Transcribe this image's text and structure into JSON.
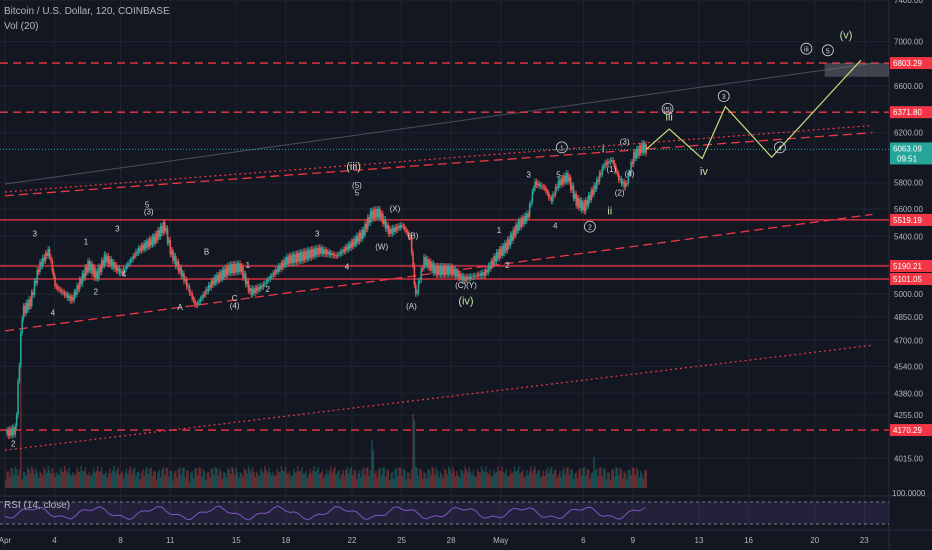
{
  "header": {
    "symbol_line": "Bitcoin / U.S. Dollar, 120, COINBASE",
    "vol_label": "Vol (20)",
    "rsi_label": "RSI (14, close)"
  },
  "chart_data": {
    "type": "candlestick",
    "instrument": "Bitcoin / U.S. Dollar",
    "interval": "120",
    "exchange": "COINBASE",
    "ylim": [
      3850,
      7400
    ],
    "y_scale": "log",
    "y_ticks": [
      7400,
      7000,
      6600,
      6200,
      5800,
      5600,
      5400,
      5200,
      5000,
      4850,
      4700,
      4540,
      4380,
      4255,
      4015
    ],
    "x_ticks": [
      {
        "label": "Apr",
        "day": 1
      },
      {
        "label": "4",
        "day": 4
      },
      {
        "label": "8",
        "day": 8
      },
      {
        "label": "11",
        "day": 11
      },
      {
        "label": "15",
        "day": 15
      },
      {
        "label": "18",
        "day": 18
      },
      {
        "label": "22",
        "day": 22
      },
      {
        "label": "25",
        "day": 25
      },
      {
        "label": "28",
        "day": 28
      },
      {
        "label": "May",
        "day": 31
      },
      {
        "label": "6",
        "day": 36
      },
      {
        "label": "9",
        "day": 39
      },
      {
        "label": "13",
        "day": 43
      },
      {
        "label": "16",
        "day": 46
      },
      {
        "label": "20",
        "day": 50
      },
      {
        "label": "23",
        "day": 53
      }
    ],
    "price_path": [
      [
        1,
        4150
      ],
      [
        1.6,
        4170
      ],
      [
        2,
        4880
      ],
      [
        2.5,
        4950
      ],
      [
        3,
        5180
      ],
      [
        3.6,
        5300
      ],
      [
        4,
        5050
      ],
      [
        5,
        4960
      ],
      [
        6,
        5200
      ],
      [
        6.5,
        5120
      ],
      [
        7,
        5250
      ],
      [
        8,
        5140
      ],
      [
        9,
        5300
      ],
      [
        10,
        5380
      ],
      [
        10.6,
        5480
      ],
      [
        11,
        5280
      ],
      [
        11.8,
        5100
      ],
      [
        12.5,
        4920
      ],
      [
        13.5,
        5080
      ],
      [
        14.5,
        5170
      ],
      [
        15.2,
        5180
      ],
      [
        15.8,
        5010
      ],
      [
        16.5,
        5050
      ],
      [
        17.3,
        5150
      ],
      [
        18,
        5230
      ],
      [
        19,
        5260
      ],
      [
        20,
        5300
      ],
      [
        21,
        5260
      ],
      [
        22,
        5350
      ],
      [
        22.6,
        5420
      ],
      [
        23.1,
        5560
      ],
      [
        23.6,
        5570
      ],
      [
        24.2,
        5430
      ],
      [
        25,
        5480
      ],
      [
        25.5,
        5380
      ],
      [
        25.8,
        4980
      ],
      [
        26.3,
        5230
      ],
      [
        27,
        5160
      ],
      [
        28,
        5160
      ],
      [
        28.7,
        5100
      ],
      [
        29.3,
        5120
      ],
      [
        30,
        5140
      ],
      [
        30.7,
        5260
      ],
      [
        31.3,
        5330
      ],
      [
        32,
        5480
      ],
      [
        32.6,
        5550
      ],
      [
        33,
        5800
      ],
      [
        33.6,
        5760
      ],
      [
        34,
        5660
      ],
      [
        34.4,
        5790
      ],
      [
        35,
        5850
      ],
      [
        35.5,
        5660
      ],
      [
        36,
        5610
      ],
      [
        36.7,
        5780
      ],
      [
        37.2,
        5940
      ],
      [
        37.7,
        5980
      ],
      [
        38.1,
        5830
      ],
      [
        38.5,
        5770
      ],
      [
        39,
        6010
      ],
      [
        39.5,
        6080
      ],
      [
        39.8,
        6063.09
      ]
    ],
    "volume_spikes": [
      [
        1.9,
        280
      ],
      [
        25.7,
        110
      ],
      [
        23.2,
        60
      ],
      [
        36.6,
        45
      ]
    ],
    "current_price": "6063.09",
    "countdown": "09:51",
    "current_price_color": "#26a69a",
    "price_labels": [
      {
        "value": "6803.29",
        "y": 6803.29
      },
      {
        "value": "6371.80",
        "y": 6371.8
      },
      {
        "value": "5519.19",
        "y": 5519.19
      },
      {
        "value": "5190.21",
        "y": 5190.21
      },
      {
        "value": "5101.05",
        "y": 5101.05
      },
      {
        "value": "4170.29",
        "y": 4170.29
      }
    ],
    "resistance_color": "#f23645",
    "rsi_ticks": [
      "100.0000"
    ],
    "annotations": [
      {
        "text": "2",
        "day": 1.5,
        "price": 4080,
        "color": "#d1d4dc"
      },
      {
        "text": "3",
        "day": 2.8,
        "price": 5400,
        "color": "#d1d4dc"
      },
      {
        "text": "4",
        "day": 3.9,
        "price": 4860,
        "color": "#d1d4dc"
      },
      {
        "text": "1",
        "day": 5.9,
        "price": 5340,
        "color": "#d1d4dc"
      },
      {
        "text": "2",
        "day": 6.5,
        "price": 4995,
        "color": "#d1d4dc"
      },
      {
        "text": "3",
        "day": 7.8,
        "price": 5435,
        "color": "#d1d4dc"
      },
      {
        "text": "4",
        "day": 8.2,
        "price": 5115,
        "color": "#d1d4dc"
      },
      {
        "text": "(3)",
        "day": 9.7,
        "price": 5560,
        "color": "#d1d4dc"
      },
      {
        "text": "5",
        "day": 9.6,
        "price": 5610,
        "color": "#d1d4dc"
      },
      {
        "text": "A",
        "day": 11.6,
        "price": 4895,
        "color": "#d1d4dc"
      },
      {
        "text": "B",
        "day": 13.2,
        "price": 5270,
        "color": "#d1d4dc"
      },
      {
        "text": "C",
        "day": 14.9,
        "price": 4955,
        "color": "#d1d4dc"
      },
      {
        "text": "(4)",
        "day": 14.9,
        "price": 4905,
        "color": "#d1d4dc"
      },
      {
        "text": "1",
        "day": 15.7,
        "price": 5175,
        "color": "#d1d4dc"
      },
      {
        "text": "2",
        "day": 16.9,
        "price": 5015,
        "color": "#d1d4dc"
      },
      {
        "text": "3",
        "day": 19.9,
        "price": 5400,
        "color": "#d1d4dc"
      },
      {
        "text": "4",
        "day": 21.7,
        "price": 5165,
        "color": "#d1d4dc"
      },
      {
        "text": "(iii)",
        "day": 22.1,
        "price": 5900,
        "color": "#c5e1a5"
      },
      {
        "text": "(5)",
        "day": 22.3,
        "price": 5760,
        "color": "#d1d4dc"
      },
      {
        "text": "5",
        "day": 22.3,
        "price": 5700,
        "color": "#d1d4dc"
      },
      {
        "text": "(X)",
        "day": 24.6,
        "price": 5580,
        "color": "#d1d4dc"
      },
      {
        "text": "(W)",
        "day": 23.8,
        "price": 5305,
        "color": "#d1d4dc"
      },
      {
        "text": "(B)",
        "day": 25.7,
        "price": 5385,
        "color": "#d1d4dc"
      },
      {
        "text": "(A)",
        "day": 25.6,
        "price": 4900,
        "color": "#d1d4dc"
      },
      {
        "text": "(C)(Y)",
        "day": 28.9,
        "price": 5040,
        "color": "#d1d4dc"
      },
      {
        "text": "(iv)",
        "day": 28.9,
        "price": 4930,
        "color": "#c5e1a5"
      },
      {
        "text": "1",
        "day": 30.9,
        "price": 5425,
        "color": "#d1d4dc"
      },
      {
        "text": "2",
        "day": 31.4,
        "price": 5175,
        "color": "#d1d4dc"
      },
      {
        "text": "3",
        "day": 32.7,
        "price": 5840,
        "color": "#d1d4dc"
      },
      {
        "text": "4",
        "day": 34.3,
        "price": 5455,
        "color": "#d1d4dc"
      },
      {
        "text": "5",
        "day": 34.5,
        "price": 5840,
        "color": "#d1d4dc"
      },
      {
        "text": "(1)",
        "day": 37.7,
        "price": 5885,
        "color": "#d1d4dc"
      },
      {
        "text": "(2)",
        "day": 38.2,
        "price": 5700,
        "color": "#d1d4dc"
      },
      {
        "text": "(3)",
        "day": 38.5,
        "price": 6105,
        "color": "#d1d4dc"
      },
      {
        "text": "(4)",
        "day": 38.8,
        "price": 5850,
        "color": "#d1d4dc"
      },
      {
        "text": "i",
        "day": 37.2,
        "price": 6040,
        "color": "#c5e1a5"
      },
      {
        "text": "ii",
        "day": 37.6,
        "price": 5560,
        "color": "#c5e1a5"
      },
      {
        "text": "iii",
        "day": 41.2,
        "price": 6300,
        "color": "#c5e1a5"
      },
      {
        "text": "iv",
        "day": 43.3,
        "price": 5860,
        "color": "#c5e1a5"
      },
      {
        "text": "(v)",
        "day": 51.9,
        "price": 7030,
        "color": "#c5e1a5"
      }
    ],
    "circled_annotations": [
      {
        "text": "1",
        "day": 34.7,
        "price": 6080
      },
      {
        "text": "2",
        "day": 36.4,
        "price": 5470
      },
      {
        "text": "3",
        "day": 44.5,
        "price": 6510
      },
      {
        "text": "4",
        "day": 47.9,
        "price": 6080
      },
      {
        "text": "5",
        "day": 50.8,
        "price": 6920
      },
      {
        "text": "(5)",
        "day": 41.1,
        "price": 6400
      },
      {
        "text": "iii",
        "day": 49.5,
        "price": 6935
      }
    ],
    "projection_path": [
      [
        39.8,
        6063.09
      ],
      [
        41.2,
        6230
      ],
      [
        43.2,
        5990
      ],
      [
        44.6,
        6420
      ],
      [
        47.4,
        6000
      ],
      [
        52.8,
        6830
      ]
    ],
    "trend_channel": {
      "upper": [
        [
          1,
          5700
        ],
        [
          53.5,
          6200
        ]
      ],
      "lower": [
        [
          1,
          4760
        ],
        [
          53.5,
          5560
        ]
      ],
      "outer_upper": [
        [
          1,
          5790
        ],
        [
          53.5,
          6800
        ]
      ],
      "outer_lower": [
        [
          1,
          4060
        ],
        [
          53.5,
          4670
        ]
      ]
    }
  }
}
